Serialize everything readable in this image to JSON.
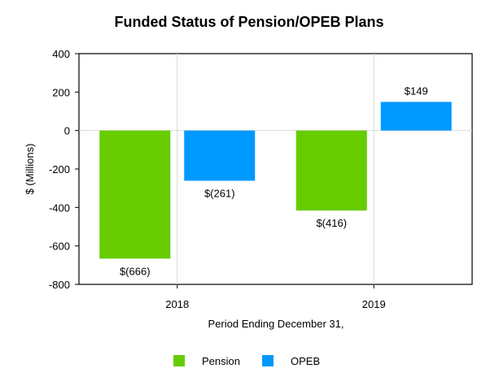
{
  "chart_data": {
    "type": "bar",
    "title": "Funded Status of Pension/OPEB Plans",
    "xlabel": "Period Ending December 31,",
    "ylabel": "$ (Millions)",
    "ylim": [
      -800,
      400
    ],
    "yticks": [
      400,
      200,
      0,
      -200,
      -400,
      -600,
      -800
    ],
    "ytick_labels": [
      "400",
      "200",
      "0",
      "-200",
      "-400",
      "-600",
      "-800"
    ],
    "categories": [
      "2018",
      "2019"
    ],
    "series": [
      {
        "name": "Pension",
        "color": "#66cc00",
        "values": [
          -666,
          -416
        ],
        "labels": [
          "$(666)",
          "$(416)"
        ]
      },
      {
        "name": "OPEB",
        "color": "#0099ff",
        "values": [
          -261,
          149
        ],
        "labels": [
          "$(261)",
          "$149"
        ]
      }
    ],
    "grid": "vertical",
    "legend": "bottom-center"
  }
}
